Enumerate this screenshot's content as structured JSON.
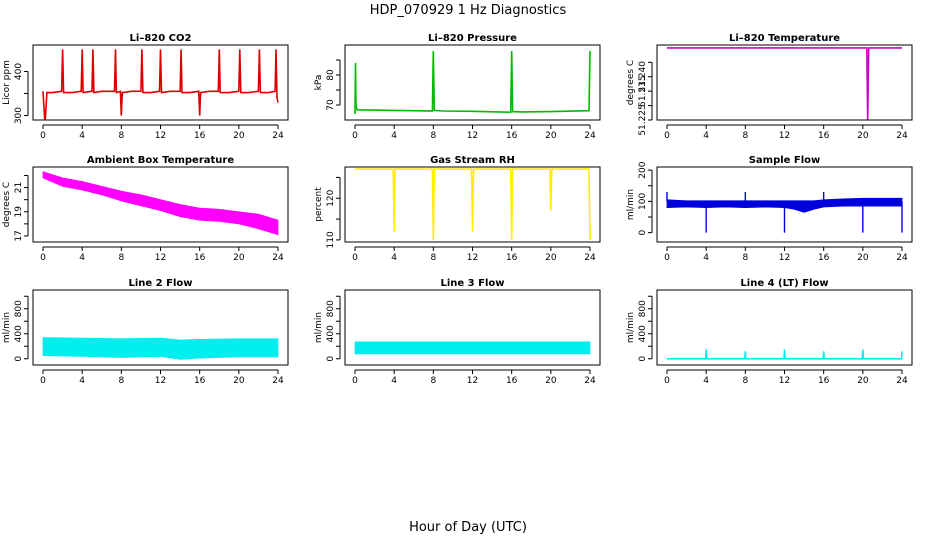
{
  "page_title": "HDP_070929  1 Hz Diagnostics",
  "xlabel": "Hour of Day (UTC)",
  "x_ticks": [
    0,
    4,
    8,
    12,
    16,
    20,
    24
  ],
  "chart_data": [
    {
      "type": "line",
      "title": "Li–820 CO2",
      "ylabel": "Licor ppm",
      "xlim": [
        0,
        24
      ],
      "ylim": [
        290,
        460
      ],
      "yticks": [
        300,
        350,
        400
      ],
      "ytick_labels": [
        "300",
        "",
        "400"
      ],
      "color": "#dd0000",
      "series": [
        {
          "x": [
            0.0,
            0.2,
            0.4,
            1.0,
            1.9,
            2.0,
            2.1,
            3.0,
            3.9,
            4.0,
            4.1,
            5.0,
            5.1,
            5.2,
            6.0,
            7.3,
            7.4,
            7.5,
            7.9,
            8.0,
            8.1,
            9.0,
            10.0,
            10.1,
            10.2,
            11.0,
            11.9,
            12.0,
            12.1,
            13.0,
            14.0,
            14.1,
            14.2,
            15.0,
            15.9,
            16.0,
            16.1,
            17.0,
            17.9,
            18.0,
            18.1,
            19.0,
            20.0,
            20.1,
            20.2,
            21.0,
            22.0,
            22.1,
            22.2,
            23.0,
            23.7,
            23.8,
            23.9,
            24.0
          ],
          "y": [
            355,
            280,
            352,
            352,
            355,
            450,
            352,
            352,
            355,
            450,
            352,
            355,
            450,
            352,
            355,
            355,
            450,
            352,
            355,
            300,
            352,
            355,
            355,
            450,
            352,
            352,
            355,
            450,
            352,
            355,
            355,
            450,
            352,
            352,
            355,
            300,
            352,
            355,
            355,
            450,
            352,
            352,
            355,
            450,
            352,
            352,
            355,
            450,
            352,
            352,
            355,
            450,
            340,
            330
          ]
        }
      ]
    },
    {
      "type": "line",
      "title": "Li–820 Pressure",
      "ylabel": "kPa",
      "xlim": [
        0,
        24
      ],
      "ylim": [
        65,
        90
      ],
      "yticks": [
        70,
        75,
        80,
        85
      ],
      "ytick_labels": [
        "70",
        "",
        "80",
        ""
      ],
      "color": "#00bb00",
      "series": [
        {
          "x": [
            0.0,
            0.05,
            0.1,
            0.2,
            2.0,
            4.0,
            6.0,
            7.9,
            8.0,
            8.1,
            9.0,
            12.0,
            15.9,
            16.0,
            16.1,
            17.0,
            20.0,
            23.9,
            24.0
          ],
          "y": [
            67,
            84,
            70,
            68.4,
            68.3,
            68.2,
            68.1,
            68.0,
            88,
            68.2,
            68.0,
            67.9,
            67.6,
            88,
            67.8,
            67.7,
            67.8,
            68.1,
            88
          ]
        }
      ]
    },
    {
      "type": "line",
      "title": "Li–820 Temperature",
      "ylabel": "degrees C",
      "xlim": [
        0,
        24
      ],
      "ylim": [
        51.225,
        51.251
      ],
      "yticks": [
        51.225,
        51.23,
        51.235,
        51.24,
        51.245
      ],
      "ytick_labels": [
        "51.225",
        "",
        "51.235",
        "51.240",
        ""
      ],
      "color": "#cc00cc",
      "series": [
        {
          "x": [
            0.0,
            5.0,
            10.0,
            15.0,
            20.4,
            20.5,
            20.6,
            22.0,
            24.0
          ],
          "y": [
            51.25,
            51.25,
            51.25,
            51.25,
            51.25,
            51.225,
            51.25,
            51.25,
            51.25
          ]
        }
      ]
    },
    {
      "type": "area",
      "title": "Ambient Box Temperature",
      "ylabel": "degrees C",
      "xlim": [
        0,
        24
      ],
      "ylim": [
        16.5,
        22.7
      ],
      "yticks": [
        17,
        18,
        19,
        20,
        21,
        22
      ],
      "ytick_labels": [
        "17",
        "",
        "19",
        "",
        "21",
        ""
      ],
      "color": "#ff00ff",
      "series": [
        {
          "x": [
            0,
            2,
            4,
            6,
            8,
            10,
            12,
            14,
            16,
            18,
            20,
            22,
            24
          ],
          "y_low": [
            21.8,
            21.1,
            20.8,
            20.4,
            19.9,
            19.5,
            19.1,
            18.6,
            18.3,
            18.2,
            18.0,
            17.6,
            17.1
          ],
          "y_high": [
            22.3,
            21.8,
            21.5,
            21.1,
            20.7,
            20.4,
            20.0,
            19.6,
            19.3,
            19.2,
            19.0,
            18.8,
            18.3
          ]
        }
      ]
    },
    {
      "type": "line",
      "title": "Gas Stream RH",
      "ylabel": "percent",
      "xlim": [
        0,
        24
      ],
      "ylim": [
        109.5,
        127.5
      ],
      "yticks": [
        110,
        115,
        120,
        125
      ],
      "ytick_labels": [
        "110",
        "",
        "120",
        ""
      ],
      "color": "#ffee00",
      "series": [
        {
          "x": [
            0.0,
            3.9,
            4.0,
            4.1,
            7.9,
            8.0,
            8.1,
            11.9,
            12.0,
            12.1,
            15.9,
            16.0,
            16.1,
            19.9,
            20.0,
            20.1,
            23.9,
            24.0
          ],
          "y": [
            127,
            127,
            112,
            127,
            127,
            110,
            127,
            127,
            112,
            127,
            127,
            110,
            127,
            127,
            117,
            127,
            127,
            110
          ]
        }
      ]
    },
    {
      "type": "area",
      "title": "Sample Flow",
      "ylabel": "ml/min",
      "xlim": [
        0,
        24
      ],
      "ylim": [
        -30,
        210
      ],
      "yticks": [
        0,
        50,
        100,
        150,
        200
      ],
      "ytick_labels": [
        "0",
        "",
        "100",
        "",
        "200"
      ],
      "color": "#0000dd",
      "series": [
        {
          "x": [
            0,
            2,
            4,
            6,
            8,
            10,
            12,
            13,
            14,
            15,
            16,
            18,
            20,
            22,
            24
          ],
          "y_low": [
            80,
            82,
            80,
            82,
            80,
            82,
            80,
            75,
            65,
            75,
            82,
            85,
            85,
            85,
            85
          ],
          "y_high": [
            105,
            102,
            102,
            102,
            102,
            102,
            102,
            102,
            102,
            102,
            105,
            108,
            110,
            110,
            110
          ]
        }
      ],
      "spikes": {
        "x": [
          0,
          4,
          8,
          12,
          16,
          20,
          24
        ],
        "y": [
          130,
          0,
          130,
          0,
          130,
          0,
          0
        ]
      }
    },
    {
      "type": "area",
      "title": "Line 2 Flow",
      "ylabel": "ml/min",
      "xlim": [
        0,
        24
      ],
      "ylim": [
        -100,
        1100
      ],
      "yticks": [
        0,
        200,
        400,
        600,
        800,
        1000
      ],
      "ytick_labels": [
        "0",
        "400",
        "800"
      ],
      "ytick_labels_at": [
        0,
        400,
        800
      ],
      "color": "#00eeee",
      "series": [
        {
          "x": [
            0,
            4,
            8,
            12,
            14,
            16,
            20,
            24
          ],
          "y_low": [
            50,
            40,
            20,
            40,
            -10,
            10,
            30,
            30
          ],
          "y_high": [
            340,
            330,
            320,
            330,
            300,
            310,
            320,
            320
          ]
        }
      ]
    },
    {
      "type": "area",
      "title": "Line 3 Flow",
      "ylabel": "ml/min",
      "xlim": [
        0,
        24
      ],
      "ylim": [
        -100,
        1100
      ],
      "yticks": [
        0,
        200,
        400,
        600,
        800,
        1000
      ],
      "ytick_labels": [
        "0",
        "400",
        "800"
      ],
      "ytick_labels_at": [
        0,
        400,
        800
      ],
      "color": "#00eeee",
      "series": [
        {
          "x": [
            0,
            4,
            8,
            12,
            16,
            20,
            24
          ],
          "y_low": [
            80,
            80,
            80,
            80,
            80,
            80,
            80
          ],
          "y_high": [
            270,
            270,
            270,
            270,
            270,
            270,
            270
          ]
        }
      ]
    },
    {
      "type": "line",
      "title": "Line 4 (LT) Flow",
      "ylabel": "ml/min",
      "xlim": [
        0,
        24
      ],
      "ylim": [
        -100,
        1100
      ],
      "yticks": [
        0,
        200,
        400,
        600,
        800,
        1000
      ],
      "ytick_labels": [
        "0",
        "400",
        "800"
      ],
      "ytick_labels_at": [
        0,
        400,
        800
      ],
      "color": "#00eeee",
      "series": [
        {
          "x": [
            0,
            3.95,
            4.0,
            4.05,
            7.95,
            8.0,
            8.05,
            11.95,
            12.0,
            12.05,
            15.95,
            16.0,
            16.05,
            19.95,
            20.0,
            20.05,
            23.95,
            24.0
          ],
          "y": [
            0,
            0,
            150,
            0,
            0,
            120,
            0,
            0,
            150,
            0,
            0,
            120,
            0,
            0,
            150,
            0,
            0,
            120
          ]
        }
      ]
    }
  ]
}
